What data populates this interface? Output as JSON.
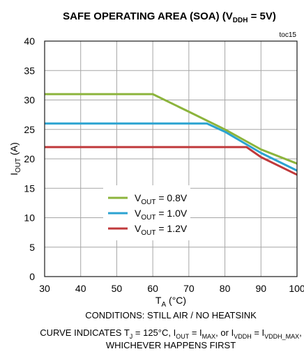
{
  "chart_data": {
    "type": "line",
    "title": {
      "pre": "SAFE OPERATING AREA (SOA) (V",
      "sub": "DDH",
      "post": " = 5V)"
    },
    "tag": "toc15",
    "xlim": [
      30,
      100
    ],
    "ylim": [
      0,
      40
    ],
    "x_ticks": [
      "30",
      "40",
      "50",
      "60",
      "70",
      "80",
      "90",
      "100"
    ],
    "y_ticks": [
      "0",
      "5",
      "10",
      "15",
      "20",
      "25",
      "30",
      "35",
      "40"
    ],
    "grid": true,
    "xlabel": {
      "main": "T",
      "sub": "A",
      "post": " (°C)"
    },
    "ylabel": {
      "main": "I",
      "sub": "OUT",
      "post": " (A)"
    },
    "legend_position": "lower-left",
    "series": [
      {
        "name": {
          "main": "V",
          "sub": "OUT",
          "post": " = 0.8V"
        },
        "color": "#8cb43c",
        "points": [
          [
            30,
            31
          ],
          [
            60,
            31
          ],
          [
            70,
            28
          ],
          [
            80,
            25
          ],
          [
            90,
            21.6
          ],
          [
            100,
            19.2
          ]
        ]
      },
      {
        "name": {
          "main": "V",
          "sub": "OUT",
          "post": " = 1.0V"
        },
        "color": "#2ba3d1",
        "points": [
          [
            30,
            26
          ],
          [
            75,
            26
          ],
          [
            80,
            24.6
          ],
          [
            90,
            21
          ],
          [
            100,
            18
          ]
        ]
      },
      {
        "name": {
          "main": "V",
          "sub": "OUT",
          "post": " = 1.2V"
        },
        "color": "#c0393b",
        "points": [
          [
            30,
            22
          ],
          [
            86,
            22
          ],
          [
            90,
            20.3
          ],
          [
            100,
            17.3
          ]
        ]
      }
    ],
    "conditions": {
      "line1": "CONDITIONS:  STILL AIR / NO HEATSINK",
      "line2_segments": [
        {
          "t": "CURVE INDICATES T"
        },
        {
          "t": "J",
          "sub": true
        },
        {
          "t": " = 125°C, I"
        },
        {
          "t": "OUT",
          "sub": true
        },
        {
          "t": " = I"
        },
        {
          "t": "MAX",
          "sub": true
        },
        {
          "t": ",  or I"
        },
        {
          "t": "VDDH",
          "sub": true
        },
        {
          "t": " = I"
        },
        {
          "t": "VDDH_MAX",
          "sub": true
        },
        {
          "t": ","
        }
      ],
      "line3": "WHICHEVER HAPPENS FIRST"
    }
  }
}
